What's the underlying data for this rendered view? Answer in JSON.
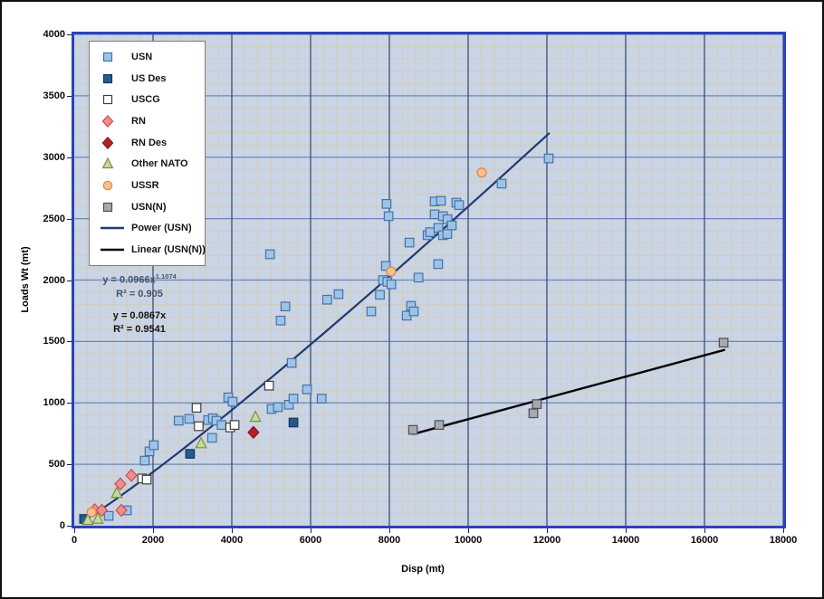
{
  "axes": {
    "x_title": "Disp (mt)",
    "y_title": "Loads Wt (mt)"
  },
  "annotations": {
    "power_eq_base": "y = 0.0966x",
    "power_eq_exp": "1.1074",
    "power_r2": "R² = 0.905",
    "linear_eq": "y = 0.0867x",
    "linear_r2": "R² = 0.9541"
  },
  "colors": {
    "plot_bg": "#c9d4e5",
    "plot_border": "#2c41bd",
    "grid_minor": "#d3cdb9",
    "grid_major_h": "#6e87b4",
    "grid_major_v": "#3f4e74",
    "frame_border": "#111111"
  },
  "chart_data": {
    "type": "scatter",
    "title": "",
    "xlabel": "Disp (mt)",
    "ylabel": "Loads Wt (mt)",
    "xlim": [
      0,
      18000
    ],
    "ylim": [
      0,
      4000
    ],
    "x_ticks": [
      0,
      2000,
      4000,
      6000,
      8000,
      10000,
      12000,
      14000,
      16000,
      18000
    ],
    "y_ticks": [
      0,
      500,
      1000,
      1500,
      2000,
      2500,
      3000,
      3500,
      4000
    ],
    "grid": {
      "x_major_step": 2000,
      "x_minor_step": 333.333,
      "y_major_step": 500,
      "y_minor_step": 100
    },
    "legend_position": "top-left-inside",
    "series": [
      {
        "name": "USN",
        "marker": "square",
        "fill": "#9fc3e7",
        "stroke": "#4472a8",
        "points": [
          [
            875,
            80
          ],
          [
            1335,
            125
          ],
          [
            1790,
            530
          ],
          [
            1910,
            605
          ],
          [
            2020,
            655
          ],
          [
            2650,
            855
          ],
          [
            2920,
            870
          ],
          [
            3400,
            860
          ],
          [
            3520,
            875
          ],
          [
            3610,
            855
          ],
          [
            3500,
            715
          ],
          [
            3740,
            820
          ],
          [
            3910,
            1045
          ],
          [
            4020,
            1010
          ],
          [
            5010,
            950
          ],
          [
            5170,
            965
          ],
          [
            5450,
            985
          ],
          [
            5565,
            1035
          ],
          [
            5910,
            1110
          ],
          [
            6280,
            1035
          ],
          [
            5520,
            1325
          ],
          [
            5240,
            1670
          ],
          [
            5360,
            1785
          ],
          [
            4970,
            2210
          ],
          [
            6420,
            1840
          ],
          [
            6710,
            1885
          ],
          [
            7540,
            1745
          ],
          [
            7760,
            1880
          ],
          [
            7840,
            2000
          ],
          [
            7950,
            1985
          ],
          [
            8050,
            1965
          ],
          [
            7910,
            2115
          ],
          [
            8440,
            1710
          ],
          [
            8550,
            1790
          ],
          [
            8620,
            1745
          ],
          [
            8510,
            2305
          ],
          [
            8740,
            2020
          ],
          [
            9240,
            2130
          ],
          [
            8970,
            2365
          ],
          [
            9035,
            2390
          ],
          [
            9245,
            2425
          ],
          [
            9360,
            2365
          ],
          [
            9470,
            2375
          ],
          [
            9150,
            2535
          ],
          [
            9360,
            2520
          ],
          [
            9475,
            2495
          ],
          [
            9585,
            2445
          ],
          [
            9150,
            2640
          ],
          [
            9310,
            2645
          ],
          [
            9700,
            2630
          ],
          [
            9770,
            2610
          ],
          [
            7930,
            2620
          ],
          [
            7980,
            2520
          ],
          [
            10850,
            2785
          ],
          [
            12045,
            2990
          ]
        ]
      },
      {
        "name": "US Des",
        "marker": "square",
        "fill": "#255a91",
        "stroke": "#16365c",
        "points": [
          [
            250,
            55
          ],
          [
            2940,
            585
          ],
          [
            5565,
            840
          ]
        ]
      },
      {
        "name": "USCG",
        "marker": "square",
        "fill": "#ffffff",
        "stroke": "#3f3f3f",
        "points": [
          [
            1725,
            385
          ],
          [
            1840,
            375
          ],
          [
            3105,
            960
          ],
          [
            3160,
            810
          ],
          [
            3960,
            800
          ],
          [
            4070,
            820
          ],
          [
            4945,
            1140
          ]
        ]
      },
      {
        "name": "RN",
        "marker": "diamond",
        "fill": "#ec8f8f",
        "stroke": "#cf4c4c",
        "points": [
          [
            520,
            130
          ],
          [
            700,
            125
          ],
          [
            1195,
            125
          ],
          [
            1170,
            340
          ],
          [
            1450,
            410
          ]
        ]
      },
      {
        "name": "RN Des",
        "marker": "diamond",
        "fill": "#b52025",
        "stroke": "#801418",
        "points": [
          [
            4550,
            760
          ]
        ]
      },
      {
        "name": "Other NATO",
        "marker": "triangle",
        "fill": "#c6d9a0",
        "stroke": "#76933c",
        "points": [
          [
            345,
            45
          ],
          [
            600,
            55
          ],
          [
            1080,
            265
          ],
          [
            3220,
            670
          ],
          [
            4600,
            885
          ]
        ]
      },
      {
        "name": "USSR",
        "marker": "circle",
        "fill": "#fac08f",
        "stroke": "#e3863d",
        "points": [
          [
            440,
            110
          ],
          [
            8045,
            2070
          ],
          [
            10345,
            2875
          ]
        ]
      },
      {
        "name": "USN(N)",
        "marker": "square",
        "fill": "#a9a9ad",
        "stroke": "#4d4d5a",
        "points": [
          [
            8600,
            780
          ],
          [
            9265,
            820
          ],
          [
            11655,
            915
          ],
          [
            11745,
            990
          ],
          [
            16485,
            1490
          ]
        ]
      }
    ],
    "trendlines": [
      {
        "name": "Power (USN)",
        "type": "power",
        "a": 0.0966,
        "b": 1.1074,
        "color": "#1f3b70",
        "width": 2.2,
        "x_range": [
          260,
          12050
        ],
        "equation": "y = 0.0966x^1.1074",
        "r2": 0.905
      },
      {
        "name": "Linear (USN(N))",
        "type": "linear",
        "slope": 0.0867,
        "color": "#050505",
        "width": 2.5,
        "x_range": [
          8620,
          16500
        ],
        "equation": "y = 0.0867x",
        "r2": 0.9541
      }
    ]
  }
}
